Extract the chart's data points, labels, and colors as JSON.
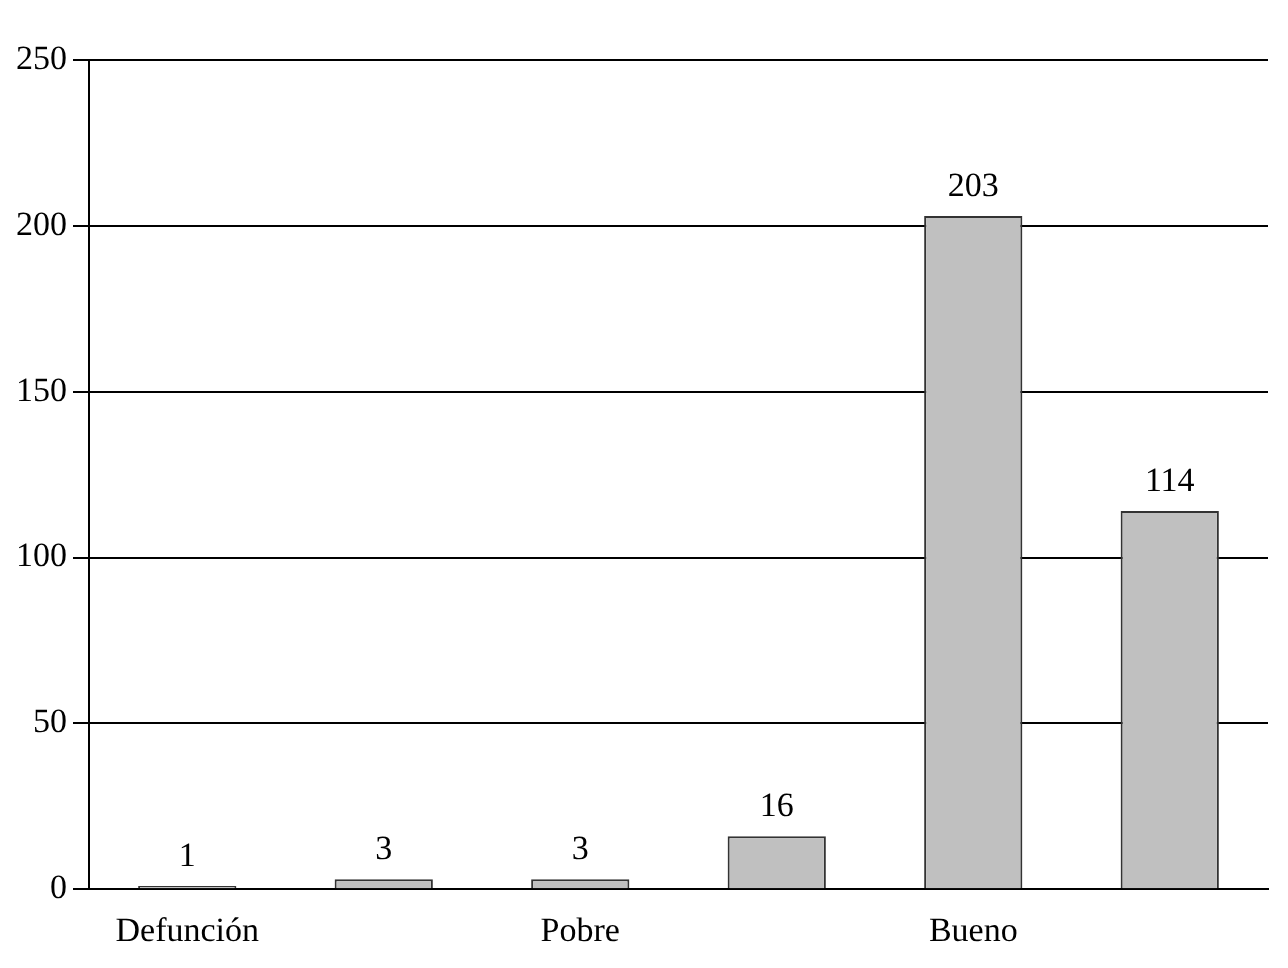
{
  "chart_data": {
    "type": "bar",
    "categories": [
      "Defunción",
      null,
      "Pobre",
      null,
      "Bueno",
      null
    ],
    "values": [
      1,
      3,
      3,
      16,
      203,
      114
    ],
    "color": "#c0c0c0",
    "ylim": [
      0,
      250
    ],
    "yticks": [
      0,
      50,
      100,
      150,
      200,
      250
    ],
    "grid": "y",
    "data_labels": true
  }
}
